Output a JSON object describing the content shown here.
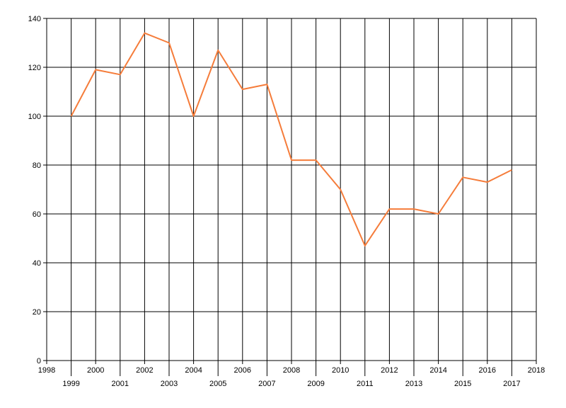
{
  "chart_data": {
    "type": "line",
    "title": "",
    "xlabel": "",
    "ylabel": "",
    "xlim": [
      1998,
      2018
    ],
    "ylim": [
      0,
      140
    ],
    "x_ticks": [
      1998,
      1999,
      2000,
      2001,
      2002,
      2003,
      2004,
      2005,
      2006,
      2007,
      2008,
      2009,
      2010,
      2011,
      2012,
      2013,
      2014,
      2015,
      2016,
      2017,
      2018
    ],
    "y_ticks": [
      0,
      20,
      40,
      60,
      80,
      100,
      120,
      140
    ],
    "grid": true,
    "legend": "none",
    "series": [
      {
        "color": "#F57C3A",
        "x": [
          1999,
          2000,
          2001,
          2002,
          2003,
          2004,
          2005,
          2006,
          2007,
          2008,
          2009,
          2010,
          2011,
          2012,
          2013,
          2014,
          2015,
          2016,
          2017
        ],
        "y": [
          100,
          119,
          117,
          134,
          130,
          100,
          127,
          111,
          113,
          82,
          82,
          70,
          47,
          62,
          62,
          60,
          75,
          73,
          78
        ]
      }
    ]
  }
}
